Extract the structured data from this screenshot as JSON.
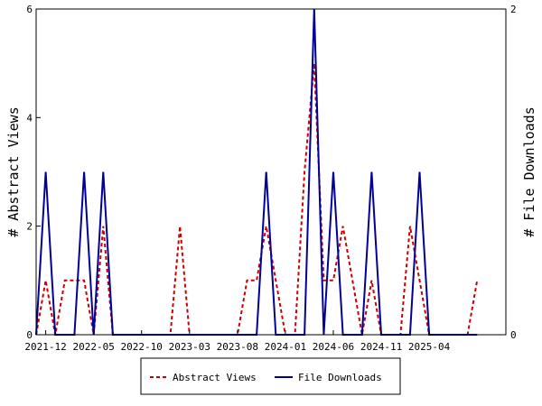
{
  "chart_data": {
    "type": "line",
    "y_left_label": "# Abstract Views",
    "y_right_label": "# File Downloads",
    "y_left_range": [
      0,
      6
    ],
    "y_right_range": [
      0,
      2
    ],
    "y_left_ticks": [
      "0",
      "2",
      "4",
      "6"
    ],
    "y_right_ticks": [
      "0",
      "2"
    ],
    "x_range": [
      "2021-11",
      "2025-12"
    ],
    "x_ticks": [
      "2021-12",
      "2022-05",
      "2022-10",
      "2023-03",
      "2023-08",
      "2024-01",
      "2024-06",
      "2024-11",
      "2025-04"
    ],
    "grid": false,
    "legend_position": "bottom",
    "series": [
      {
        "name": "Abstract Views",
        "axis": "left",
        "color": "#cc0000",
        "style": "dashed",
        "points": [
          [
            "2021-11",
            0
          ],
          [
            "2021-12",
            1
          ],
          [
            "2022-01",
            0
          ],
          [
            "2022-02",
            1
          ],
          [
            "2022-03",
            1
          ],
          [
            "2022-04",
            1
          ],
          [
            "2022-05",
            0
          ],
          [
            "2022-06",
            2
          ],
          [
            "2022-07",
            0
          ],
          [
            "2022-08",
            0
          ],
          [
            "2022-09",
            0
          ],
          [
            "2022-10",
            0
          ],
          [
            "2022-11",
            0
          ],
          [
            "2022-12",
            0
          ],
          [
            "2023-01",
            0
          ],
          [
            "2023-02",
            2
          ],
          [
            "2023-03",
            0
          ],
          [
            "2023-04",
            0
          ],
          [
            "2023-05",
            0
          ],
          [
            "2023-06",
            0
          ],
          [
            "2023-07",
            0
          ],
          [
            "2023-08",
            0
          ],
          [
            "2023-09",
            1
          ],
          [
            "2023-10",
            1
          ],
          [
            "2023-11",
            2
          ],
          [
            "2023-12",
            1
          ],
          [
            "2024-01",
            0
          ],
          [
            "2024-02",
            0
          ],
          [
            "2024-03",
            3
          ],
          [
            "2024-04",
            5
          ],
          [
            "2024-05",
            1
          ],
          [
            "2024-06",
            1
          ],
          [
            "2024-07",
            2
          ],
          [
            "2024-08",
            1
          ],
          [
            "2024-09",
            0
          ],
          [
            "2024-10",
            1
          ],
          [
            "2024-11",
            0
          ],
          [
            "2024-12",
            0
          ],
          [
            "2025-01",
            0
          ],
          [
            "2025-02",
            2
          ],
          [
            "2025-03",
            1
          ],
          [
            "2025-04",
            0
          ],
          [
            "2025-05",
            0
          ],
          [
            "2025-06",
            0
          ],
          [
            "2025-07",
            0
          ],
          [
            "2025-08",
            0
          ],
          [
            "2025-09",
            1
          ]
        ]
      },
      {
        "name": "File Downloads",
        "axis": "right",
        "color": "#000099",
        "style": "solid",
        "points": [
          [
            "2021-11",
            0
          ],
          [
            "2021-12",
            1
          ],
          [
            "2022-01",
            0
          ],
          [
            "2022-02",
            0
          ],
          [
            "2022-03",
            0
          ],
          [
            "2022-04",
            1
          ],
          [
            "2022-05",
            0
          ],
          [
            "2022-06",
            1
          ],
          [
            "2022-07",
            0
          ],
          [
            "2022-08",
            0
          ],
          [
            "2022-09",
            0
          ],
          [
            "2022-10",
            0
          ],
          [
            "2022-11",
            0
          ],
          [
            "2022-12",
            0
          ],
          [
            "2023-01",
            0
          ],
          [
            "2023-02",
            0
          ],
          [
            "2023-03",
            0
          ],
          [
            "2023-04",
            0
          ],
          [
            "2023-05",
            0
          ],
          [
            "2023-06",
            0
          ],
          [
            "2023-07",
            0
          ],
          [
            "2023-08",
            0
          ],
          [
            "2023-09",
            0
          ],
          [
            "2023-10",
            0
          ],
          [
            "2023-11",
            1
          ],
          [
            "2023-12",
            0
          ],
          [
            "2024-01",
            0
          ],
          [
            "2024-02",
            0
          ],
          [
            "2024-03",
            0
          ],
          [
            "2024-04",
            2
          ],
          [
            "2024-05",
            0
          ],
          [
            "2024-06",
            1
          ],
          [
            "2024-07",
            0
          ],
          [
            "2024-08",
            0
          ],
          [
            "2024-09",
            0
          ],
          [
            "2024-10",
            1
          ],
          [
            "2024-11",
            0
          ],
          [
            "2024-12",
            0
          ],
          [
            "2025-01",
            0
          ],
          [
            "2025-02",
            0
          ],
          [
            "2025-03",
            1
          ],
          [
            "2025-04",
            0
          ],
          [
            "2025-05",
            0
          ],
          [
            "2025-06",
            0
          ],
          [
            "2025-07",
            0
          ],
          [
            "2025-08",
            0
          ],
          [
            "2025-09",
            0
          ]
        ]
      }
    ]
  }
}
